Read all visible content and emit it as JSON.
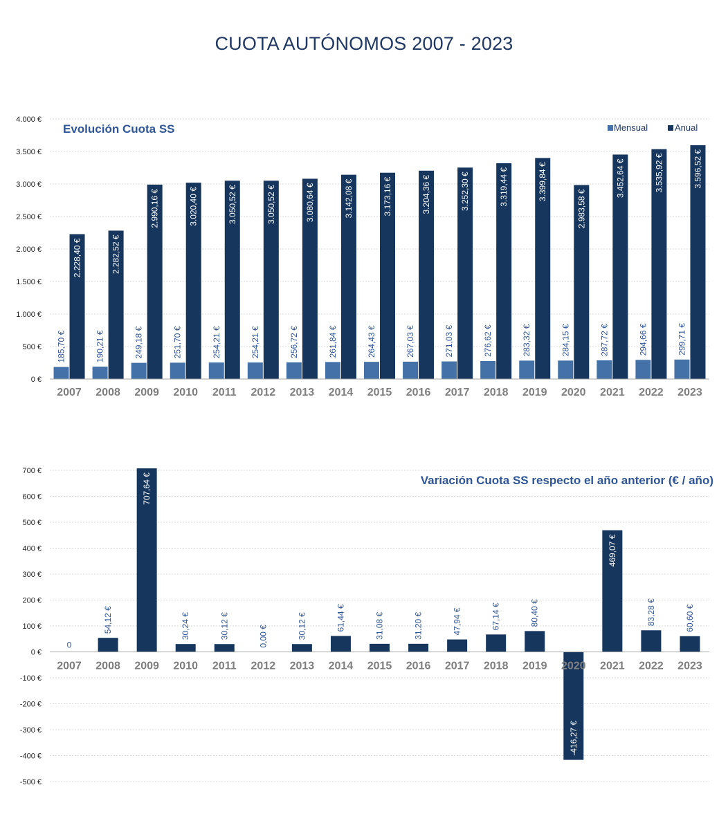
{
  "title": "CUOTA AUTÓNOMOS 2007 - 2023",
  "colors": {
    "mensual": "#4472a8",
    "anual": "#17365d",
    "variation": "#17365d",
    "label_blue": "#2e5597",
    "grid": "#d9d9d9"
  },
  "chart_data": [
    {
      "type": "bar",
      "title": "Evolución Cuota SS",
      "categories": [
        "2007",
        "2008",
        "2009",
        "2010",
        "2011",
        "2012",
        "2013",
        "2014",
        "2015",
        "2016",
        "2017",
        "2018",
        "2019",
        "2020",
        "2021",
        "2022",
        "2023"
      ],
      "series": [
        {
          "name": "Mensual",
          "values": [
            185.7,
            190.21,
            249.18,
            251.7,
            254.21,
            254.21,
            256.72,
            261.84,
            264.43,
            267.03,
            271.03,
            276.62,
            283.32,
            284.15,
            287.72,
            294.66,
            299.71
          ],
          "labels": [
            "185,70 €",
            "190,21 €",
            "249,18 €",
            "251,70 €",
            "254,21 €",
            "254,21 €",
            "256,72 €",
            "261,84 €",
            "264,43 €",
            "267,03 €",
            "271,03 €",
            "276,62 €",
            "283,32 €",
            "284,15 €",
            "287,72 €",
            "294,66 €",
            "299,71 €"
          ]
        },
        {
          "name": "Anual",
          "values": [
            2228.4,
            2282.52,
            2990.16,
            3020.4,
            3050.52,
            3050.52,
            3080.64,
            3142.08,
            3173.16,
            3204.36,
            3252.3,
            3319.44,
            3399.84,
            2983.58,
            3452.64,
            3535.92,
            3596.52
          ],
          "labels": [
            "2.228,40 €",
            "2.282,52 €",
            "2.990,16 €",
            "3.020,40 €",
            "3.050,52 €",
            "3.050,52 €",
            "3.080,64 €",
            "3.142,08 €",
            "3.173,16 €",
            "3.204,36 €",
            "3.252,30 €",
            "3.319,44 €",
            "3.399,84 €",
            "2.983,58 €",
            "3.452,64 €",
            "3.535,92 €",
            "3.596,52 €"
          ]
        }
      ],
      "ylim": [
        0,
        4000
      ],
      "yticks": [
        0,
        500,
        1000,
        1500,
        2000,
        2500,
        3000,
        3500,
        4000
      ],
      "ytick_labels": [
        "0 €",
        "500 €",
        "1.000 €",
        "1.500 €",
        "2.000 €",
        "2.500 €",
        "3.000 €",
        "3.500 €",
        "4.000 €"
      ],
      "legend": "top-right",
      "grid": true
    },
    {
      "type": "bar",
      "title": "Variación  Cuota SS respecto el año anterior (€ / año)",
      "categories": [
        "2007",
        "2008",
        "2009",
        "2010",
        "2011",
        "2012",
        "2013",
        "2014",
        "2015",
        "2016",
        "2017",
        "2018",
        "2019",
        "2020",
        "2021",
        "2022",
        "2023"
      ],
      "values": [
        0,
        54.12,
        707.64,
        30.24,
        30.12,
        0.0,
        30.12,
        61.44,
        31.08,
        31.2,
        47.94,
        67.14,
        80.4,
        -416.27,
        469.07,
        83.28,
        60.6
      ],
      "labels": [
        "0",
        "54,12 €",
        "707,64 €",
        "30,24 €",
        "30,12 €",
        "0,00 €",
        "30,12 €",
        "61,44 €",
        "31,08 €",
        "31,20 €",
        "47,94 €",
        "67,14 €",
        "80,40 €",
        "-416,27 €",
        "469,07 €",
        "83,28 €",
        "60,60 €"
      ],
      "ylim": [
        -500,
        700
      ],
      "yticks": [
        -500,
        -400,
        -300,
        -200,
        -100,
        0,
        100,
        200,
        300,
        400,
        500,
        600,
        700
      ],
      "ytick_labels": [
        "-500 €",
        "-400 €",
        "-300 €",
        "-200 €",
        "-100 €",
        "0 €",
        "100 €",
        "200 €",
        "300 €",
        "400 €",
        "500 €",
        "600 €",
        "700 €"
      ],
      "grid": true
    }
  ]
}
